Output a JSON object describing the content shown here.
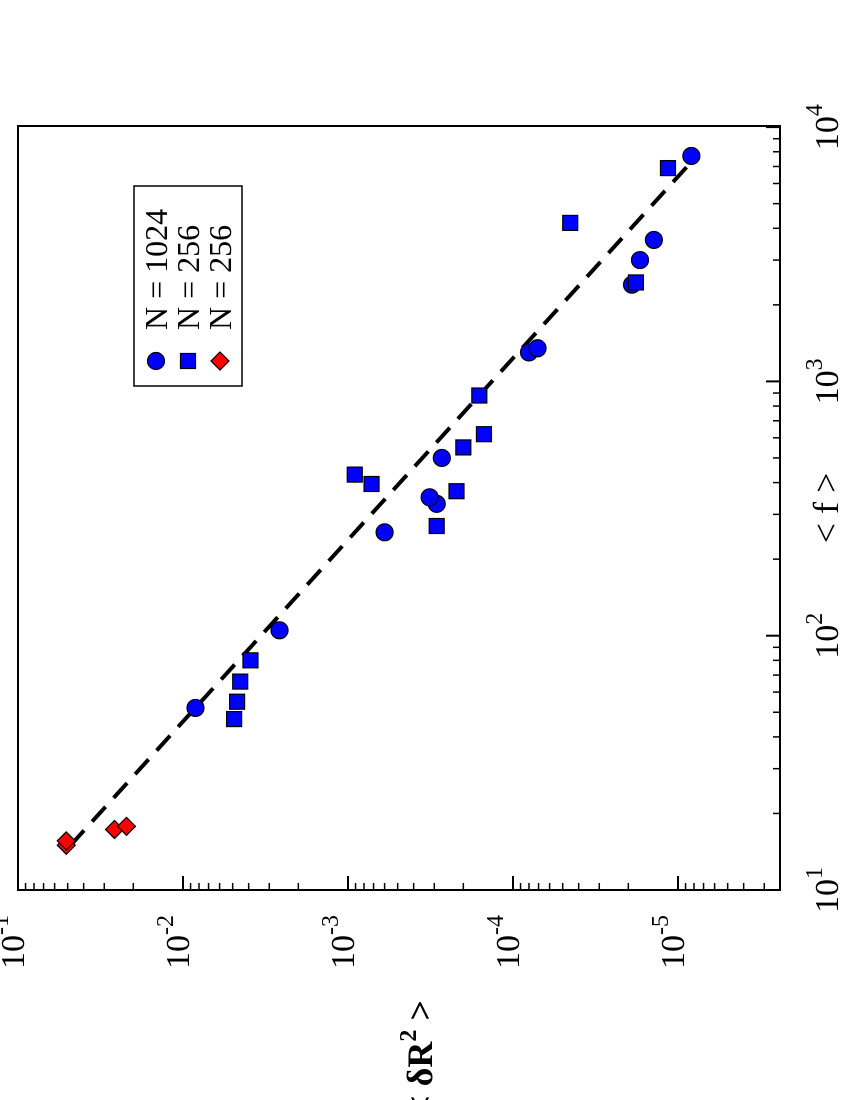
{
  "chart_data": {
    "type": "scatter",
    "orientation": "rotated-90",
    "xlabel": "< f >",
    "ylabel_parts": [
      "< δR",
      "2",
      " >"
    ],
    "x_scale": "log",
    "y_scale": "log",
    "xlim": [
      10,
      10000
    ],
    "ylim": [
      1e-06,
      0.1
    ],
    "grid": false,
    "legend_position": "top-left",
    "x_ticks": [
      {
        "base": "10",
        "exp": "1",
        "value": 10
      },
      {
        "base": "10",
        "exp": "2",
        "value": 100
      },
      {
        "base": "10",
        "exp": "3",
        "value": 1000
      },
      {
        "base": "10",
        "exp": "4",
        "value": 10000
      }
    ],
    "y_ticks": [
      {
        "base": "10",
        "exp": "-1",
        "value": 0.1
      },
      {
        "base": "10",
        "exp": "-2",
        "value": 0.01
      },
      {
        "base": "10",
        "exp": "-3",
        "value": 0.001
      },
      {
        "base": "10",
        "exp": "-4",
        "value": 0.0001
      },
      {
        "base": "10",
        "exp": "-5",
        "value": 1e-05
      }
    ],
    "series": [
      {
        "name": "N = 1024",
        "marker": "circle",
        "color": "#0000ff",
        "points": [
          {
            "x": 52,
            "y": 0.0084
          },
          {
            "x": 105,
            "y": 0.0026
          },
          {
            "x": 255,
            "y": 0.0006
          },
          {
            "x": 330,
            "y": 0.00029
          },
          {
            "x": 350,
            "y": 0.00032
          },
          {
            "x": 500,
            "y": 0.00027
          },
          {
            "x": 1300,
            "y": 8e-05
          },
          {
            "x": 1350,
            "y": 7.1e-05
          },
          {
            "x": 2400,
            "y": 1.9e-05
          },
          {
            "x": 3000,
            "y": 1.7e-05
          },
          {
            "x": 3600,
            "y": 1.4e-05
          },
          {
            "x": 7700,
            "y": 8.3e-06
          }
        ]
      },
      {
        "name": "N = 256",
        "marker": "square",
        "color": "#0000ff",
        "points": [
          {
            "x": 47,
            "y": 0.0049
          },
          {
            "x": 55,
            "y": 0.0047
          },
          {
            "x": 66,
            "y": 0.0045
          },
          {
            "x": 80,
            "y": 0.0039
          },
          {
            "x": 270,
            "y": 0.00029
          },
          {
            "x": 370,
            "y": 0.00022
          },
          {
            "x": 395,
            "y": 0.00072
          },
          {
            "x": 430,
            "y": 0.00091
          },
          {
            "x": 550,
            "y": 0.0002
          },
          {
            "x": 620,
            "y": 0.00015
          },
          {
            "x": 880,
            "y": 0.00016
          },
          {
            "x": 2450,
            "y": 1.8e-05
          },
          {
            "x": 4200,
            "y": 4.5e-05
          },
          {
            "x": 6900,
            "y": 1.15e-05
          }
        ]
      },
      {
        "name": "N = 256",
        "marker": "diamond",
        "color": "#ff0000",
        "points": [
          {
            "x": 15,
            "y": 0.051
          },
          {
            "x": 15.6,
            "y": 0.051
          },
          {
            "x": 17.3,
            "y": 0.026
          },
          {
            "x": 17.8,
            "y": 0.022
          }
        ]
      }
    ],
    "fit_line": {
      "style": "dashed",
      "color": "#000000",
      "points": [
        {
          "x": 15,
          "y": 0.048
        },
        {
          "x": 7000,
          "y": 8.8e-06
        }
      ]
    }
  }
}
